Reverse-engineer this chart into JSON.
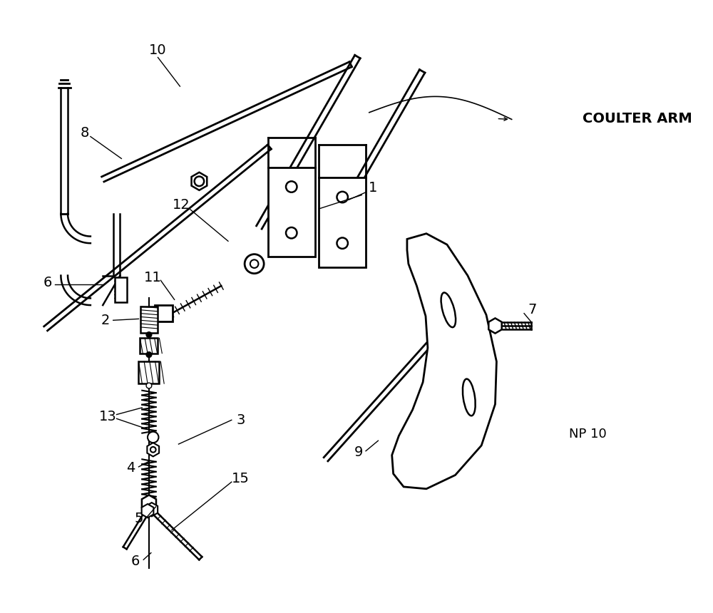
{
  "bg_color": "#ffffff",
  "line_color": "#000000",
  "np_label": "NP 10",
  "coulter_arm_label": "COULTER ARM",
  "figsize": [
    10.0,
    8.6
  ],
  "dpi": 100
}
